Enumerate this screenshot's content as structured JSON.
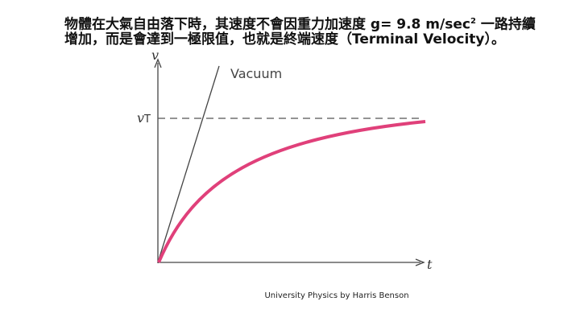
{
  "header": {
    "line1": {
      "text": "物體在大氣自由落下時，其速度不會因重力加速度 g= 9.8 m/sec",
      "sup": "2",
      "tail": " 一路持續"
    },
    "line2": "增加，而是會達到一極限值，也就是終端速度（Terminal Velocity）。"
  },
  "figure": {
    "y_axis_label": "v",
    "terminal_label": "v",
    "terminal_sub": "T",
    "vacuum_label": "Vacuum",
    "x_axis_label": "t"
  },
  "caption": "University Physics by Harris Benson"
}
